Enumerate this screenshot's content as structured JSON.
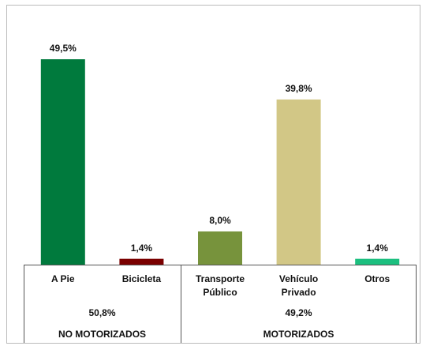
{
  "chart_data": {
    "type": "bar",
    "categories": [
      "A Pie",
      "Bicicleta",
      "Transporte Público",
      "Vehículo Privado",
      "Otros"
    ],
    "values": [
      49.5,
      1.4,
      8.0,
      39.8,
      1.4
    ],
    "value_labels": [
      "49,5%",
      "1,4%",
      "8,0%",
      "39,8%",
      "1,4%"
    ],
    "colors": [
      "#007a3d",
      "#7a0000",
      "#77933c",
      "#d2c786",
      "#1cbf7f"
    ],
    "groups": [
      {
        "name": "NO MOTORIZADOS",
        "value": 50.8,
        "value_label": "50,8%"
      },
      {
        "name": "MOTORIZADOS",
        "value": 49.2,
        "value_label": "49,2%"
      }
    ]
  }
}
